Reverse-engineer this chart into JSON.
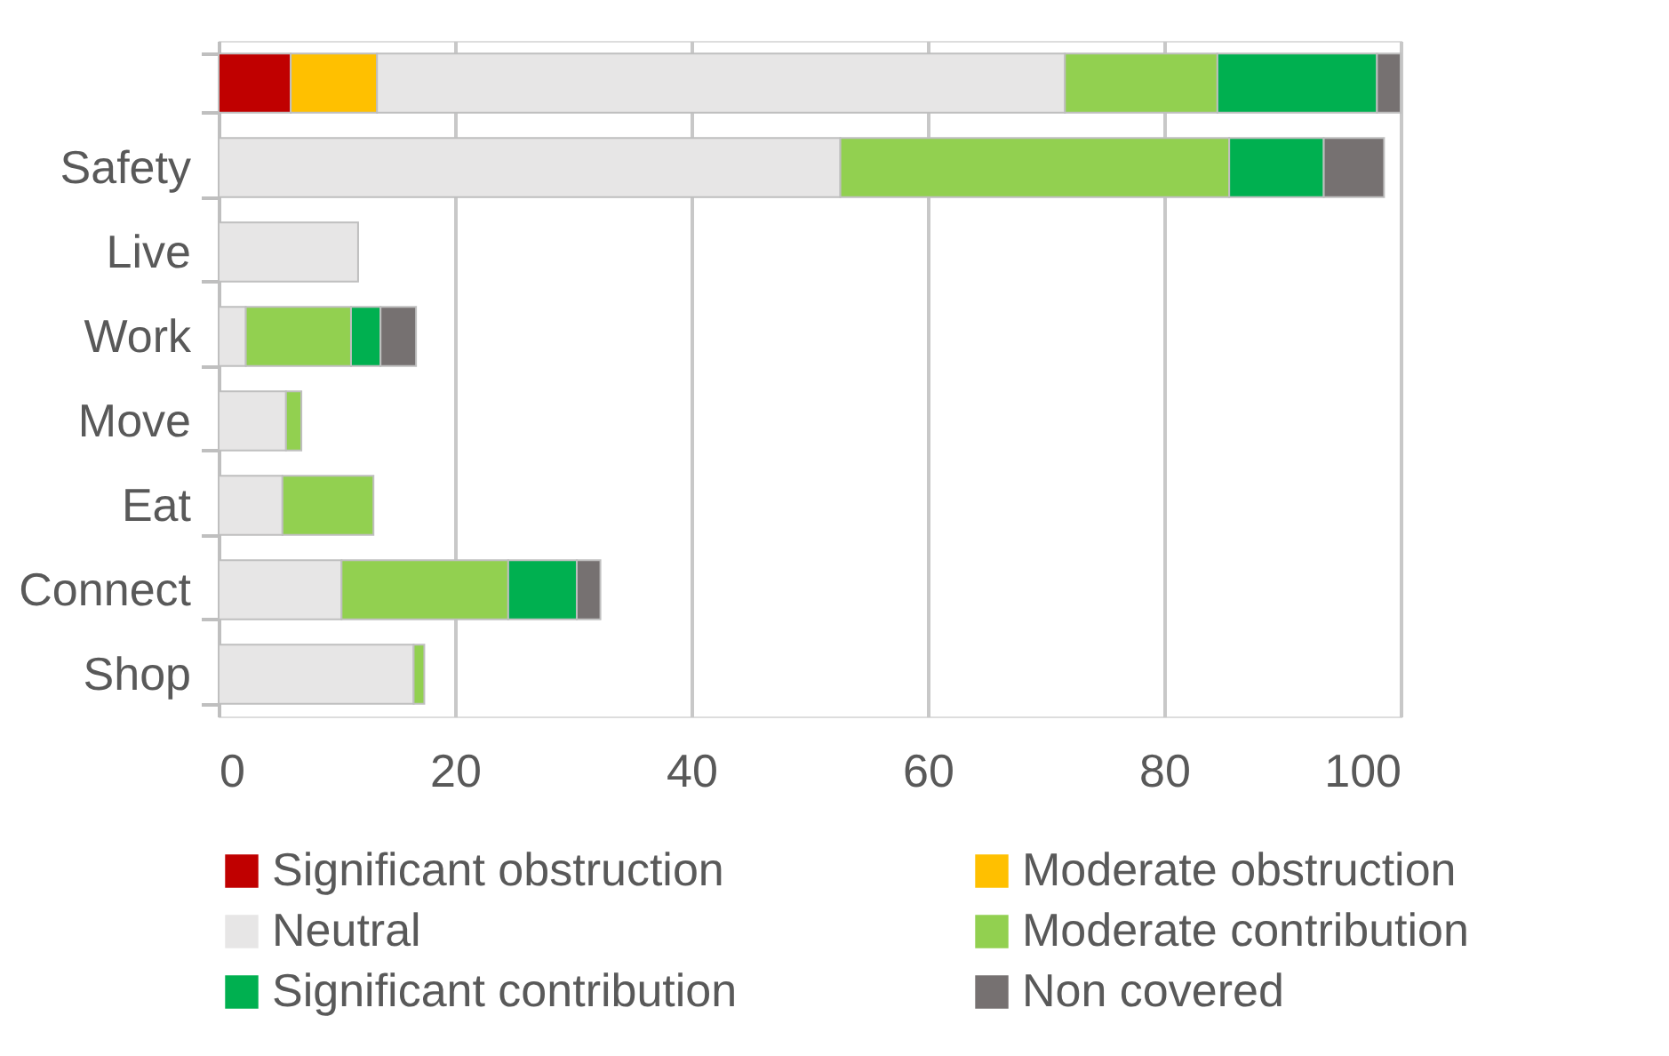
{
  "chart_data": {
    "type": "bar",
    "orientation": "horizontal",
    "stacked": true,
    "categories": [
      null,
      "Safety",
      "Live",
      "Work",
      "Move",
      "Eat",
      "Connect",
      "Shop"
    ],
    "series": [
      {
        "name": "Significant obstruction",
        "color": "#c00000",
        "values": [
          6.1,
          null,
          null,
          null,
          null,
          null,
          null,
          null
        ]
      },
      {
        "name": "Moderate obstruction",
        "color": "#ffc000",
        "values": [
          7.3,
          null,
          null,
          null,
          null,
          null,
          null,
          null
        ]
      },
      {
        "name": "Neutral",
        "color": "#e7e6e6",
        "values": [
          58.2,
          52.6,
          11.8,
          2.3,
          5.7,
          5.4,
          10.4,
          16.5
        ]
      },
      {
        "name": "Moderate contribution",
        "color": "#92d050",
        "values": [
          12.9,
          32.9,
          null,
          8.9,
          1.3,
          7.7,
          14.1,
          0.9
        ]
      },
      {
        "name": "Significant contribution",
        "color": "#00b050",
        "values": [
          13.5,
          8.0,
          null,
          2.5,
          null,
          null,
          5.8,
          null
        ]
      },
      {
        "name": "Non covered",
        "color": "#767171",
        "values": [
          2.0,
          5.1,
          null,
          3.0,
          null,
          null,
          2.0,
          null
        ]
      }
    ],
    "xlim": [
      0,
      100
    ],
    "xticks": [
      0,
      20,
      40,
      60,
      80,
      100
    ],
    "grid": "x",
    "legend": "bottom"
  }
}
